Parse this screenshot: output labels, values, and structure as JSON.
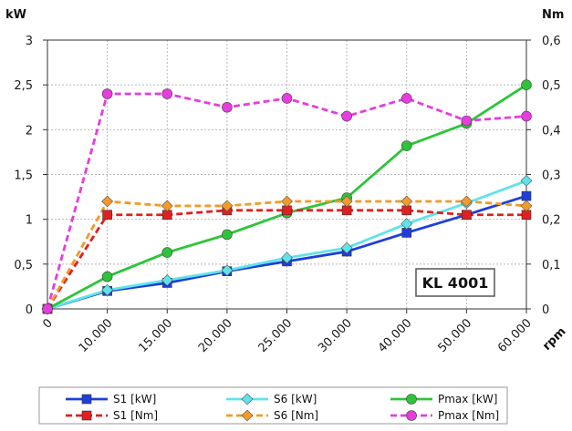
{
  "chart_data": {
    "type": "line",
    "xlabel": "rpm",
    "ylabel_left": "kW",
    "ylabel_right": "Nm",
    "categories": [
      "0",
      "10.000",
      "15.000",
      "20.000",
      "25.000",
      "30.000",
      "40.000",
      "50.000",
      "60.000"
    ],
    "ylim_left": [
      0,
      3
    ],
    "ylim_right": [
      0,
      0.6
    ],
    "yticks_left": [
      "0",
      "0,5",
      "1",
      "1,5",
      "2",
      "2,5",
      "3"
    ],
    "yticks_right": [
      "0",
      "0,1",
      "0,2",
      "0,3",
      "0,4",
      "0,5",
      "0,6"
    ],
    "grid": true,
    "annotation": "KL 4001",
    "legend_placement": "bottom",
    "series": [
      {
        "name": "S1 [kW]",
        "axis": "left",
        "color": "#1f3fd8",
        "dash": "solid",
        "marker": "square",
        "values": [
          0,
          0.2,
          0.29,
          0.42,
          0.53,
          0.64,
          0.85,
          1.05,
          1.26
        ]
      },
      {
        "name": "S6 [kW]",
        "axis": "left",
        "color": "#5fe3ea",
        "dash": "solid",
        "marker": "diamond",
        "values": [
          0,
          0.21,
          0.32,
          0.43,
          0.57,
          0.68,
          0.95,
          1.18,
          1.43
        ]
      },
      {
        "name": "Pmax [kW]",
        "axis": "left",
        "color": "#2ec43a",
        "dash": "solid",
        "marker": "circle",
        "values": [
          0,
          0.36,
          0.63,
          0.83,
          1.07,
          1.24,
          1.82,
          2.07,
          2.5
        ]
      },
      {
        "name": "S1 [Nm]",
        "axis": "right",
        "color": "#e02020",
        "dash": "dashed",
        "marker": "square",
        "values": [
          0,
          0.21,
          0.21,
          0.22,
          0.22,
          0.22,
          0.22,
          0.21,
          0.21
        ]
      },
      {
        "name": "S6 [Nm]",
        "axis": "right",
        "color": "#f39a28",
        "dash": "dashed",
        "marker": "diamond",
        "values": [
          0,
          0.24,
          0.23,
          0.23,
          0.24,
          0.24,
          0.24,
          0.24,
          0.23
        ]
      },
      {
        "name": "Pmax [Nm]",
        "axis": "right",
        "color": "#e63ce0",
        "dash": "dashed",
        "marker": "circle",
        "values": [
          0,
          0.48,
          0.48,
          0.45,
          0.47,
          0.43,
          0.47,
          0.42,
          0.43
        ]
      }
    ]
  }
}
